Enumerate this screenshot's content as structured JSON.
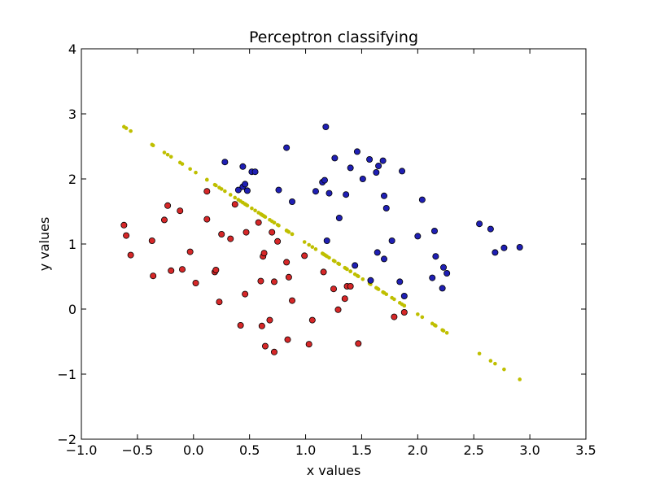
{
  "chart_data": {
    "type": "scatter",
    "title": "Perceptron classifying",
    "xlabel": "x values",
    "ylabel": "y values",
    "xlim": [
      -1.0,
      3.5
    ],
    "ylim": [
      -2,
      4
    ],
    "xticks": [
      -1.0,
      -0.5,
      0.0,
      0.5,
      1.0,
      1.5,
      2.0,
      2.5,
      3.0,
      3.5
    ],
    "xtick_labels": [
      "−1.0",
      "−0.5",
      "0.0",
      "0.5",
      "1.0",
      "1.5",
      "2.0",
      "2.5",
      "3.0",
      "3.5"
    ],
    "yticks": [
      -2,
      -1,
      0,
      1,
      2,
      3,
      4
    ],
    "ytick_labels": [
      "−2",
      "−1",
      "0",
      "1",
      "2",
      "3",
      "4"
    ],
    "grid": false,
    "colors": {
      "class_a": "#d62728",
      "class_b": "#1f1fb4",
      "boundary": "#bfbf00"
    },
    "series": [
      {
        "color": "#d62728",
        "points": [
          [
            -0.62,
            1.29
          ],
          [
            -0.6,
            1.13
          ],
          [
            -0.56,
            0.83
          ],
          [
            -0.37,
            1.05
          ],
          [
            -0.36,
            0.51
          ],
          [
            -0.26,
            1.37
          ],
          [
            -0.23,
            1.59
          ],
          [
            -0.2,
            0.59
          ],
          [
            -0.12,
            1.51
          ],
          [
            -0.1,
            0.61
          ],
          [
            -0.03,
            0.88
          ],
          [
            0.02,
            0.4
          ],
          [
            0.12,
            1.81
          ],
          [
            0.12,
            1.38
          ],
          [
            0.19,
            0.57
          ],
          [
            0.2,
            0.6
          ],
          [
            0.23,
            0.11
          ],
          [
            0.25,
            1.15
          ],
          [
            0.33,
            1.08
          ],
          [
            0.37,
            1.61
          ],
          [
            0.42,
            -0.25
          ],
          [
            0.46,
            0.23
          ],
          [
            0.47,
            1.18
          ],
          [
            0.58,
            1.33
          ],
          [
            0.6,
            0.43
          ],
          [
            0.61,
            -0.26
          ],
          [
            0.62,
            0.81
          ],
          [
            0.63,
            0.86
          ],
          [
            0.64,
            -0.57
          ],
          [
            0.68,
            -0.17
          ],
          [
            0.7,
            1.18
          ],
          [
            0.72,
            -0.66
          ],
          [
            0.72,
            0.42
          ],
          [
            0.75,
            1.04
          ],
          [
            0.83,
            0.72
          ],
          [
            0.84,
            -0.47
          ],
          [
            0.85,
            0.49
          ],
          [
            0.88,
            0.13
          ],
          [
            0.99,
            0.82
          ],
          [
            1.03,
            -0.54
          ],
          [
            1.06,
            -0.17
          ],
          [
            1.16,
            0.57
          ],
          [
            1.25,
            0.31
          ],
          [
            1.29,
            -0.01
          ],
          [
            1.35,
            0.16
          ],
          [
            1.37,
            0.35
          ],
          [
            1.4,
            0.35
          ],
          [
            1.47,
            -0.53
          ],
          [
            1.79,
            -0.12
          ],
          [
            1.88,
            -0.05
          ]
        ]
      },
      {
        "color": "#1f1fb4",
        "points": [
          [
            0.28,
            2.26
          ],
          [
            0.4,
            1.83
          ],
          [
            0.44,
            2.19
          ],
          [
            0.44,
            1.88
          ],
          [
            0.46,
            1.92
          ],
          [
            0.48,
            1.82
          ],
          [
            0.52,
            2.11
          ],
          [
            0.55,
            2.11
          ],
          [
            0.76,
            1.83
          ],
          [
            0.83,
            2.48
          ],
          [
            0.88,
            1.65
          ],
          [
            1.09,
            1.81
          ],
          [
            1.15,
            1.95
          ],
          [
            1.17,
            1.98
          ],
          [
            1.18,
            2.8
          ],
          [
            1.19,
            1.05
          ],
          [
            1.21,
            1.78
          ],
          [
            1.26,
            2.32
          ],
          [
            1.3,
            1.4
          ],
          [
            1.36,
            1.76
          ],
          [
            1.4,
            2.17
          ],
          [
            1.44,
            0.67
          ],
          [
            1.46,
            2.42
          ],
          [
            1.51,
            2.0
          ],
          [
            1.57,
            2.3
          ],
          [
            1.58,
            0.44
          ],
          [
            1.63,
            2.1
          ],
          [
            1.64,
            0.87
          ],
          [
            1.65,
            2.2
          ],
          [
            1.69,
            2.28
          ],
          [
            1.7,
            1.74
          ],
          [
            1.7,
            0.77
          ],
          [
            1.72,
            1.55
          ],
          [
            1.77,
            1.05
          ],
          [
            1.84,
            0.42
          ],
          [
            1.86,
            2.12
          ],
          [
            1.88,
            0.2
          ],
          [
            2.0,
            1.12
          ],
          [
            2.04,
            1.68
          ],
          [
            2.13,
            0.48
          ],
          [
            2.15,
            1.2
          ],
          [
            2.16,
            0.81
          ],
          [
            2.22,
            0.32
          ],
          [
            2.23,
            0.64
          ],
          [
            2.26,
            0.55
          ],
          [
            2.55,
            1.31
          ],
          [
            2.65,
            1.23
          ],
          [
            2.69,
            0.87
          ],
          [
            2.77,
            0.94
          ],
          [
            2.91,
            0.95
          ]
        ]
      }
    ],
    "boundary": {
      "color": "#bfbf00",
      "x": [
        -0.62,
        -0.6,
        -0.56,
        -0.37,
        -0.36,
        -0.26,
        -0.23,
        -0.2,
        -0.12,
        -0.1,
        -0.03,
        0.02,
        0.12,
        0.12,
        0.19,
        0.2,
        0.23,
        0.25,
        0.28,
        0.33,
        0.37,
        0.4,
        0.42,
        0.44,
        0.44,
        0.46,
        0.46,
        0.47,
        0.48,
        0.52,
        0.55,
        0.58,
        0.6,
        0.61,
        0.62,
        0.63,
        0.64,
        0.68,
        0.7,
        0.72,
        0.72,
        0.75,
        0.76,
        0.83,
        0.83,
        0.84,
        0.85,
        0.88,
        0.88,
        0.99,
        1.03,
        1.06,
        1.09,
        1.15,
        1.16,
        1.17,
        1.18,
        1.19,
        1.21,
        1.25,
        1.26,
        1.29,
        1.3,
        1.35,
        1.36,
        1.37,
        1.4,
        1.4,
        1.44,
        1.46,
        1.47,
        1.51,
        1.57,
        1.58,
        1.63,
        1.64,
        1.65,
        1.69,
        1.7,
        1.7,
        1.72,
        1.77,
        1.79,
        1.84,
        1.86,
        1.88,
        1.88,
        2.0,
        2.04,
        2.13,
        2.15,
        2.16,
        2.22,
        2.23,
        2.26,
        2.55,
        2.65,
        2.69,
        2.77,
        2.91
      ],
      "intercept": 2.12,
      "slope": -1.1
    }
  }
}
